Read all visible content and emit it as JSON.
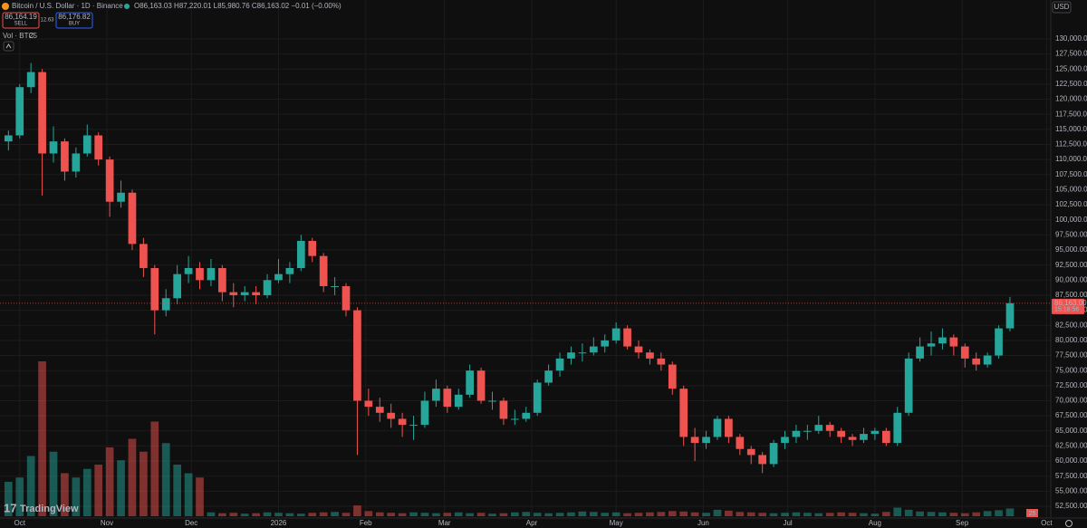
{
  "header": {
    "symbol": "Bitcoin / U.S. Dollar · 1D · Binance",
    "ohlc_line": "O86,163.03 H87,220.01 L85,980.76 C86,163.02 −0.01 (−0.00%)",
    "sell_price": "86,164.19",
    "sell_label": "SELL",
    "spread": "12.63",
    "buy_price": "86,176.82",
    "buy_label": "BUY",
    "volume_label": "Vol · BTC",
    "volume_value": "25",
    "currency": "USD",
    "brand": "TradingView",
    "event_badge": "25"
  },
  "chart_data": {
    "type": "candlestick",
    "up_color": "#26a69a",
    "down_color": "#ef5350",
    "grid": true,
    "xlim": [
      -7,
      366.5
    ],
    "ylim": [
      50850,
      136450
    ],
    "vollim": [
      0,
      40000
    ],
    "xticks": [
      {
        "value": 0,
        "label": "Oct"
      },
      {
        "value": 31,
        "label": "Nov"
      },
      {
        "value": 61,
        "label": "Dec"
      },
      {
        "value": 92,
        "label": "2026"
      },
      {
        "value": 123,
        "label": "Feb"
      },
      {
        "value": 151,
        "label": "Mar"
      },
      {
        "value": 182,
        "label": "Apr"
      },
      {
        "value": 212,
        "label": "May"
      },
      {
        "value": 243,
        "label": "Jun"
      },
      {
        "value": 273,
        "label": "Jul"
      },
      {
        "value": 304,
        "label": "Aug"
      },
      {
        "value": 335,
        "label": "Sep"
      },
      {
        "value": 365,
        "label": "Oct"
      }
    ],
    "yticks": [
      {
        "value": 52500,
        "label": "52,500.00"
      },
      {
        "value": 55000,
        "label": "55,000.00"
      },
      {
        "value": 57500,
        "label": "57,500.00"
      },
      {
        "value": 60000,
        "label": "60,000.00"
      },
      {
        "value": 62500,
        "label": "62,500.00"
      },
      {
        "value": 65000,
        "label": "65,000.00"
      },
      {
        "value": 67500,
        "label": "67,500.00"
      },
      {
        "value": 70000,
        "label": "70,000.00"
      },
      {
        "value": 72500,
        "label": "72,500.00"
      },
      {
        "value": 75000,
        "label": "75,000.00"
      },
      {
        "value": 77500,
        "label": "77,500.00"
      },
      {
        "value": 80000,
        "label": "80,000.00"
      },
      {
        "value": 82500,
        "label": "82,500.00"
      },
      {
        "value": 85000,
        "label": "85,000.00"
      },
      {
        "value": 87500,
        "label": "87,500.00"
      },
      {
        "value": 90000,
        "label": "90,000.00"
      },
      {
        "value": 92500,
        "label": "92,500.00"
      },
      {
        "value": 95000,
        "label": "95,000.00"
      },
      {
        "value": 97500,
        "label": "97,500.00"
      },
      {
        "value": 100000,
        "label": "100,000.00"
      },
      {
        "value": 102500,
        "label": "102,500.00"
      },
      {
        "value": 105000,
        "label": "105,000.00"
      },
      {
        "value": 107500,
        "label": "107,500.00"
      },
      {
        "value": 110000,
        "label": "110,000.00"
      },
      {
        "value": 112500,
        "label": "112,500.00"
      },
      {
        "value": 115000,
        "label": "115,000.00"
      },
      {
        "value": 117500,
        "label": "117,500.00"
      },
      {
        "value": 120000,
        "label": "120,000.00"
      },
      {
        "value": 122500,
        "label": "122,500.00"
      },
      {
        "value": 125000,
        "label": "125,000.00"
      },
      {
        "value": 127500,
        "label": "127,500.00"
      },
      {
        "value": 130000,
        "label": "130,000.00"
      }
    ],
    "last_price": {
      "value": 86163,
      "label": "86,163.00"
    },
    "countdown": "15:18:56",
    "x": [
      -4,
      0,
      4,
      8,
      12,
      16,
      20,
      24,
      28,
      32,
      36,
      40,
      44,
      48,
      52,
      56,
      60,
      64,
      68,
      72,
      76,
      80,
      84,
      88,
      92,
      96,
      100,
      104,
      108,
      112,
      116,
      120,
      124,
      128,
      132,
      136,
      140,
      144,
      148,
      152,
      156,
      160,
      164,
      168,
      172,
      176,
      180,
      184,
      188,
      192,
      196,
      200,
      204,
      208,
      212,
      216,
      220,
      224,
      228,
      232,
      236,
      240,
      244,
      248,
      252,
      256,
      260,
      264,
      268,
      272,
      276,
      280,
      284,
      288,
      292,
      296,
      300,
      304,
      308,
      312,
      316,
      320,
      324,
      328,
      332,
      336,
      340,
      344,
      348,
      352
    ],
    "ohlc": [
      [
        113000,
        114800,
        111500,
        114000
      ],
      [
        114000,
        122500,
        113500,
        122000
      ],
      [
        122000,
        126000,
        121000,
        124500
      ],
      [
        124500,
        125000,
        104000,
        111000
      ],
      [
        111000,
        115500,
        109500,
        113000
      ],
      [
        113000,
        113500,
        106500,
        108000
      ],
      [
        108000,
        112000,
        107000,
        111000
      ],
      [
        111000,
        115800,
        110500,
        114000
      ],
      [
        114000,
        114500,
        109000,
        110000
      ],
      [
        110000,
        110500,
        100500,
        103000
      ],
      [
        103000,
        106500,
        102000,
        104500
      ],
      [
        104500,
        105000,
        95000,
        96000
      ],
      [
        96000,
        97000,
        90500,
        92000
      ],
      [
        92000,
        92500,
        81000,
        85000
      ],
      [
        85000,
        88500,
        84000,
        87000
      ],
      [
        87000,
        92500,
        86000,
        91000
      ],
      [
        91000,
        94000,
        89500,
        92000
      ],
      [
        92000,
        93000,
        88500,
        90000
      ],
      [
        90000,
        93500,
        89000,
        92000
      ],
      [
        92000,
        92500,
        86500,
        88000
      ],
      [
        88000,
        89500,
        85500,
        87500
      ],
      [
        87500,
        89000,
        86500,
        88000
      ],
      [
        88000,
        89000,
        86000,
        87500
      ],
      [
        87500,
        91000,
        87000,
        90000
      ],
      [
        90000,
        93500,
        89500,
        91000
      ],
      [
        91000,
        93000,
        89500,
        92000
      ],
      [
        92000,
        97500,
        91500,
        96500
      ],
      [
        96500,
        97000,
        93000,
        94000
      ],
      [
        94000,
        94500,
        88000,
        89000
      ],
      [
        89000,
        90500,
        87500,
        89000
      ],
      [
        89000,
        89500,
        84000,
        85000
      ],
      [
        85000,
        85500,
        61000,
        70000
      ],
      [
        70000,
        72000,
        67500,
        69000
      ],
      [
        69000,
        70500,
        66500,
        68000
      ],
      [
        68000,
        69500,
        65500,
        67000
      ],
      [
        67000,
        68000,
        64000,
        66000
      ],
      [
        66000,
        67500,
        63500,
        66000
      ],
      [
        66000,
        71500,
        65500,
        70000
      ],
      [
        70000,
        73500,
        69000,
        72000
      ],
      [
        72000,
        72500,
        68000,
        69000
      ],
      [
        69000,
        72000,
        68500,
        71000
      ],
      [
        71000,
        76000,
        70500,
        75000
      ],
      [
        75000,
        75500,
        69500,
        70000
      ],
      [
        70000,
        71500,
        68500,
        70000
      ],
      [
        70000,
        70500,
        66000,
        67000
      ],
      [
        67000,
        68500,
        66000,
        67000
      ],
      [
        67000,
        69000,
        66500,
        68000
      ],
      [
        68000,
        73500,
        67500,
        73000
      ],
      [
        73000,
        76000,
        72500,
        75000
      ],
      [
        75000,
        78000,
        74000,
        77000
      ],
      [
        77000,
        79000,
        76000,
        78000
      ],
      [
        78000,
        79500,
        76500,
        78000
      ],
      [
        78000,
        80500,
        77500,
        79000
      ],
      [
        79000,
        81000,
        78000,
        80000
      ],
      [
        80000,
        83000,
        79500,
        82000
      ],
      [
        82000,
        82500,
        78500,
        79000
      ],
      [
        79000,
        80000,
        77000,
        78000
      ],
      [
        78000,
        78500,
        76000,
        77000
      ],
      [
        77000,
        78000,
        75000,
        76000
      ],
      [
        76000,
        76500,
        71000,
        72000
      ],
      [
        72000,
        72500,
        62500,
        64000
      ],
      [
        64000,
        65500,
        60000,
        63000
      ],
      [
        63000,
        65000,
        62000,
        64000
      ],
      [
        64000,
        67500,
        63500,
        67000
      ],
      [
        67000,
        67500,
        63000,
        64000
      ],
      [
        64000,
        64500,
        61000,
        62000
      ],
      [
        62000,
        62500,
        59500,
        61000
      ],
      [
        61000,
        61500,
        58000,
        59500
      ],
      [
        59500,
        63500,
        59000,
        63000
      ],
      [
        63000,
        65000,
        62000,
        64000
      ],
      [
        64000,
        66000,
        63000,
        65000
      ],
      [
        65000,
        66000,
        63500,
        65000
      ],
      [
        65000,
        67500,
        64500,
        66000
      ],
      [
        66000,
        66500,
        64000,
        65000
      ],
      [
        65000,
        65500,
        63000,
        64000
      ],
      [
        64000,
        64500,
        62500,
        63500
      ],
      [
        63500,
        65500,
        63000,
        64500
      ],
      [
        64500,
        65500,
        63500,
        65000
      ],
      [
        65000,
        65500,
        62500,
        63000
      ],
      [
        63000,
        69000,
        62500,
        68000
      ],
      [
        68000,
        78000,
        67500,
        77000
      ],
      [
        77000,
        80500,
        76500,
        79000
      ],
      [
        79000,
        81500,
        77500,
        79500
      ],
      [
        79500,
        82000,
        78500,
        80500
      ],
      [
        80500,
        81000,
        77500,
        79000
      ],
      [
        79000,
        79500,
        75500,
        77000
      ],
      [
        77000,
        78000,
        75000,
        76000
      ],
      [
        76000,
        78000,
        75500,
        77500
      ],
      [
        77500,
        82500,
        77000,
        82000
      ],
      [
        82000,
        87220,
        81500,
        86163
      ]
    ],
    "volume": [
      8000,
      9000,
      14000,
      36000,
      15000,
      10000,
      9000,
      11000,
      12000,
      16000,
      13000,
      18000,
      15000,
      22000,
      17000,
      12000,
      10000,
      9000,
      900,
      700,
      800,
      600,
      700,
      900,
      800,
      700,
      600,
      800,
      900,
      1000,
      800,
      2500,
      1200,
      900,
      800,
      700,
      900,
      800,
      700,
      800,
      900,
      700,
      800,
      600,
      700,
      900,
      1000,
      800,
      700,
      800,
      900,
      1100,
      1000,
      800,
      900,
      700,
      800,
      900,
      1000,
      1200,
      1100,
      900,
      800,
      1500,
      1300,
      1000,
      900,
      800,
      700,
      800,
      900,
      800,
      700,
      800,
      900,
      800,
      700,
      600,
      1000,
      2000,
      1500,
      1100,
      1000,
      900,
      800,
      700,
      900,
      1200,
      1400,
      1800
    ]
  }
}
